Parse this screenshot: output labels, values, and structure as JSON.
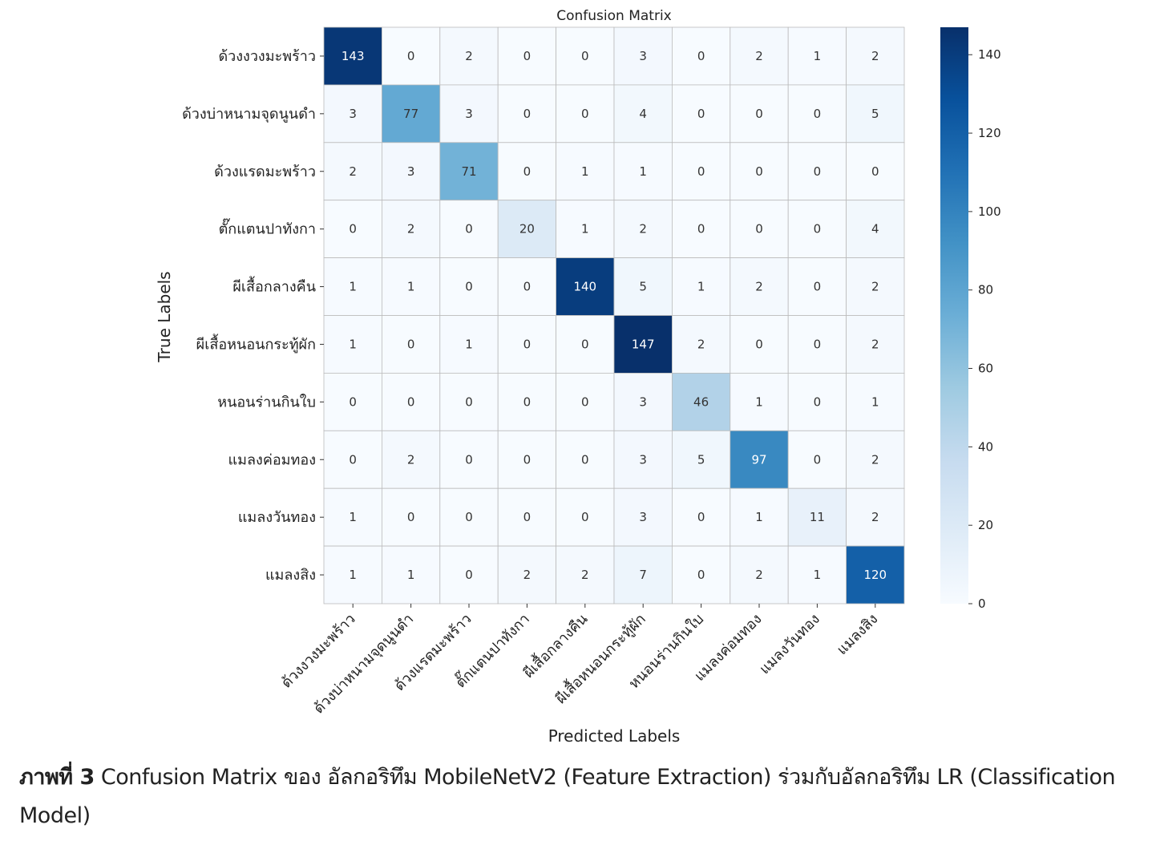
{
  "chart_data": {
    "type": "heatmap",
    "title": "Confusion Matrix",
    "xlabel": "Predicted Labels",
    "ylabel": "True Labels",
    "labels": [
      "ด้วงงวงมะพร้าว",
      "ด้วงบ่าหนามจุดนูนดำ",
      "ด้วงแรดมะพร้าว",
      "ตั๊กแตนปาทังกา",
      "ผีเสื้อกลางคืน",
      "ผีเสื้อหนอนกระทู้ผัก",
      "หนอนร่านกินใบ",
      "แมลงค่อมทอง",
      "แมลงวันทอง",
      "แมลงสิง"
    ],
    "matrix": [
      [
        143,
        0,
        2,
        0,
        0,
        3,
        0,
        2,
        1,
        2
      ],
      [
        3,
        77,
        3,
        0,
        0,
        4,
        0,
        0,
        0,
        5
      ],
      [
        2,
        3,
        71,
        0,
        1,
        1,
        0,
        0,
        0,
        0
      ],
      [
        0,
        2,
        0,
        20,
        1,
        2,
        0,
        0,
        0,
        4
      ],
      [
        1,
        1,
        0,
        0,
        140,
        5,
        1,
        2,
        0,
        2
      ],
      [
        1,
        0,
        1,
        0,
        0,
        147,
        2,
        0,
        0,
        2
      ],
      [
        0,
        0,
        0,
        0,
        0,
        3,
        46,
        1,
        0,
        1
      ],
      [
        0,
        2,
        0,
        0,
        0,
        3,
        5,
        97,
        0,
        2
      ],
      [
        1,
        0,
        0,
        0,
        0,
        3,
        0,
        1,
        11,
        2
      ],
      [
        1,
        1,
        0,
        2,
        2,
        7,
        0,
        2,
        1,
        120
      ]
    ],
    "colormap": "Blues",
    "colorbar": {
      "range": [
        0,
        147
      ],
      "ticks": [
        0,
        20,
        40,
        60,
        80,
        100,
        120,
        140
      ]
    }
  },
  "caption": {
    "prefix": "ภาพที่ 3",
    "text": "Confusion Matrix ของ อัลกอริทึม MobileNetV2 (Feature Extraction) ร่วมกับอัลกอริทึม LR (Classification Model)"
  }
}
